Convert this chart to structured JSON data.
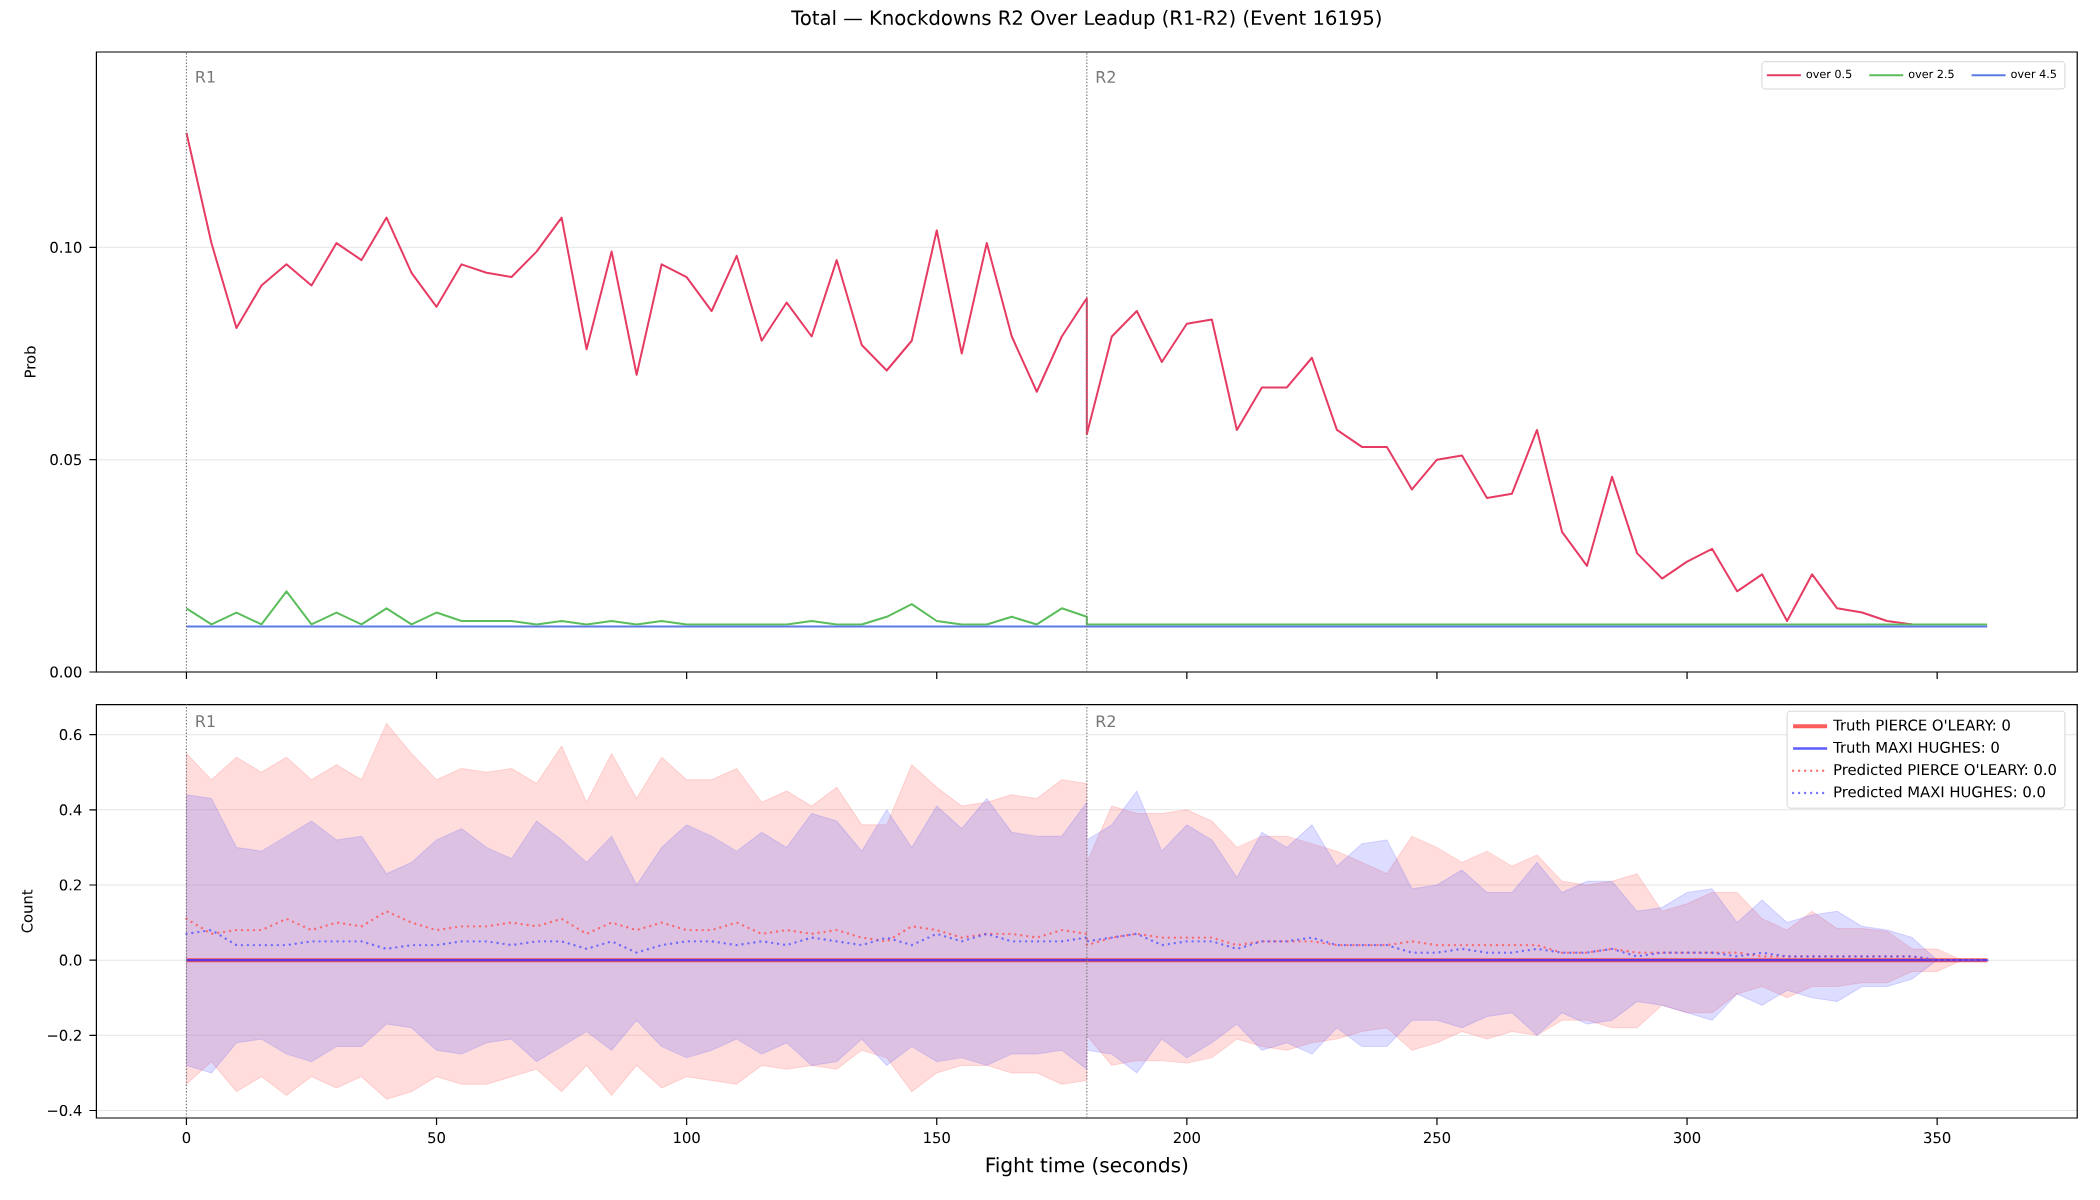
{
  "chart_data": [
    {
      "type": "line",
      "title": "Total — Knockdowns R2 Over Leadup (R1-R2) (Event 16195)",
      "ylabel": "Prob",
      "x": [
        0,
        5,
        10,
        15,
        20,
        25,
        30,
        35,
        40,
        45,
        50,
        55,
        60,
        65,
        70,
        75,
        80,
        85,
        90,
        95,
        100,
        105,
        110,
        115,
        120,
        125,
        130,
        135,
        140,
        145,
        150,
        155,
        160,
        165,
        170,
        175,
        180,
        180,
        185,
        190,
        195,
        200,
        205,
        210,
        215,
        220,
        225,
        230,
        235,
        240,
        245,
        250,
        255,
        260,
        265,
        270,
        275,
        280,
        285,
        290,
        295,
        300,
        305,
        310,
        315,
        320,
        325,
        330,
        335,
        340,
        345,
        350,
        355,
        360
      ],
      "series": [
        {
          "name": "over 0.5",
          "color": "#e63c64",
          "values": [
            0.127,
            0.101,
            0.081,
            0.091,
            0.096,
            0.091,
            0.101,
            0.097,
            0.107,
            0.094,
            0.086,
            0.096,
            0.094,
            0.093,
            0.099,
            0.107,
            0.076,
            0.099,
            0.07,
            0.096,
            0.093,
            0.085,
            0.098,
            0.078,
            0.087,
            0.079,
            0.097,
            0.077,
            0.071,
            0.078,
            0.104,
            0.075,
            0.101,
            0.079,
            0.066,
            0.079,
            0.088,
            0.056,
            0.079,
            0.085,
            0.073,
            0.082,
            0.083,
            0.057,
            0.067,
            0.067,
            0.074,
            0.057,
            0.053,
            0.053,
            0.043,
            0.05,
            0.051,
            0.041,
            0.042,
            0.057,
            0.033,
            0.025,
            0.046,
            0.028,
            0.022,
            0.026,
            0.029,
            0.019,
            0.023,
            0.012,
            0.023,
            0.015,
            0.014,
            0.012,
            0.0112,
            null,
            null,
            null
          ]
        },
        {
          "name": "over 2.5",
          "color": "#5cbd5c",
          "values": [
            0.015,
            0.0112,
            0.014,
            0.0112,
            0.019,
            0.0112,
            0.014,
            0.0112,
            0.015,
            0.0112,
            0.014,
            0.012,
            0.012,
            0.012,
            0.0112,
            0.012,
            0.0112,
            0.012,
            0.0112,
            0.012,
            0.0112,
            0.0112,
            0.0112,
            0.0112,
            0.0112,
            0.012,
            0.0112,
            0.0112,
            0.013,
            0.016,
            0.012,
            0.0112,
            0.0112,
            0.013,
            0.0112,
            0.015,
            0.013,
            0.0112,
            0.0112,
            0.0112,
            0.0112,
            0.0112,
            0.0112,
            0.0112,
            0.0112,
            0.0112,
            0.0112,
            0.0112,
            0.0112,
            0.0112,
            0.0112,
            0.0112,
            0.0112,
            0.0112,
            0.0112,
            0.0112,
            0.0112,
            0.0112,
            0.0112,
            0.0112,
            0.0112,
            0.0112,
            0.0112,
            0.0112,
            0.0112,
            0.0112,
            0.0112,
            0.0112,
            0.0112,
            0.0112,
            0.0112,
            0.0112,
            0.0112,
            0.0112
          ]
        },
        {
          "name": "over 4.5",
          "color": "#5b7be3",
          "values": [
            0.0107,
            0.0107,
            0.0107,
            0.0107,
            0.0107,
            0.0107,
            0.0107,
            0.0107,
            0.0107,
            0.0107,
            0.0107,
            0.0107,
            0.0107,
            0.0107,
            0.0107,
            0.0107,
            0.0107,
            0.0107,
            0.0107,
            0.0107,
            0.0107,
            0.0107,
            0.0107,
            0.0107,
            0.0107,
            0.0107,
            0.0107,
            0.0107,
            0.0107,
            0.0107,
            0.0107,
            0.0107,
            0.0107,
            0.0107,
            0.0107,
            0.0107,
            0.0107,
            0.0107,
            0.0107,
            0.0107,
            0.0107,
            0.0107,
            0.0107,
            0.0107,
            0.0107,
            0.0107,
            0.0107,
            0.0107,
            0.0107,
            0.0107,
            0.0107,
            0.0107,
            0.0107,
            0.0107,
            0.0107,
            0.0107,
            0.0107,
            0.0107,
            0.0107,
            0.0107,
            0.0107,
            0.0107,
            0.0107,
            0.0107,
            0.0107,
            0.0107,
            0.0107,
            0.0107,
            0.0107,
            0.0107,
            0.0107,
            0.0107,
            0.0107,
            0.0107
          ]
        }
      ],
      "xlim": [
        -18,
        378
      ],
      "ylim": [
        0,
        0.146
      ],
      "xticks": [
        0,
        50,
        100,
        150,
        200,
        250,
        300,
        350
      ],
      "yticks": [
        {
          "value": 0,
          "label": "0.00"
        },
        {
          "value": 0.05,
          "label": "0.05"
        },
        {
          "value": 0.1,
          "label": "0.10"
        }
      ],
      "tick_labels": "y",
      "grid": "y",
      "legend": "top right",
      "ref_lines": [
        {
          "axis": "x",
          "value": 0,
          "label": "R1",
          "color": "#777777",
          "line_style": "dotted"
        },
        {
          "axis": "x",
          "value": 180,
          "label": "R2",
          "color": "#777777",
          "line_style": "dotted"
        }
      ]
    },
    {
      "type": "line",
      "xlabel": "Fight time (seconds)",
      "ylabel": "Count",
      "x": [
        0,
        5,
        10,
        15,
        20,
        25,
        30,
        35,
        40,
        45,
        50,
        55,
        60,
        65,
        70,
        75,
        80,
        85,
        90,
        95,
        100,
        105,
        110,
        115,
        120,
        125,
        130,
        135,
        140,
        145,
        150,
        155,
        160,
        165,
        170,
        175,
        180,
        180,
        185,
        190,
        195,
        200,
        205,
        210,
        215,
        220,
        225,
        230,
        235,
        240,
        245,
        250,
        255,
        260,
        265,
        270,
        275,
        280,
        285,
        290,
        295,
        300,
        305,
        310,
        315,
        320,
        325,
        330,
        335,
        340,
        345,
        350,
        355,
        360
      ],
      "series": [
        {
          "name": "Truth PIERCE O'LEARY: 0",
          "color": "#ff3333",
          "values": [
            0,
            0,
            0,
            0,
            0,
            0,
            0,
            0,
            0,
            0,
            0,
            0,
            0,
            0,
            0,
            0,
            0,
            0,
            0,
            0,
            0,
            0,
            0,
            0,
            0,
            0,
            0,
            0,
            0,
            0,
            0,
            0,
            0,
            0,
            0,
            0,
            0,
            0,
            0,
            0,
            0,
            0,
            0,
            0,
            0,
            0,
            0,
            0,
            0,
            0,
            0,
            0,
            0,
            0,
            0,
            0,
            0,
            0,
            0,
            0,
            0,
            0,
            0,
            0,
            0,
            0,
            0,
            0,
            0,
            0,
            0,
            0,
            0,
            0
          ]
        },
        {
          "name": "Truth MAXI HUGHES: 0",
          "color": "#3333ff",
          "values": [
            0,
            0,
            0,
            0,
            0,
            0,
            0,
            0,
            0,
            0,
            0,
            0,
            0,
            0,
            0,
            0,
            0,
            0,
            0,
            0,
            0,
            0,
            0,
            0,
            0,
            0,
            0,
            0,
            0,
            0,
            0,
            0,
            0,
            0,
            0,
            0,
            0,
            0,
            0,
            0,
            0,
            0,
            0,
            0,
            0,
            0,
            0,
            0,
            0,
            0,
            0,
            0,
            0,
            0,
            0,
            0,
            0,
            0,
            0,
            0,
            0,
            0,
            0,
            0,
            0,
            0,
            0,
            0,
            0,
            0,
            0,
            0,
            0,
            0
          ]
        },
        {
          "name": "Predicted PIERCE O'LEARY: 0.0",
          "color": "#ff5555",
          "line_style": "dotted",
          "values": [
            0.11,
            0.07,
            0.08,
            0.08,
            0.11,
            0.08,
            0.1,
            0.09,
            0.13,
            0.1,
            0.08,
            0.09,
            0.09,
            0.1,
            0.09,
            0.11,
            0.07,
            0.1,
            0.08,
            0.1,
            0.08,
            0.08,
            0.1,
            0.07,
            0.08,
            0.07,
            0.08,
            0.06,
            0.05,
            0.09,
            0.08,
            0.06,
            0.07,
            0.07,
            0.06,
            0.08,
            0.07,
            0.04,
            0.06,
            0.07,
            0.06,
            0.06,
            0.06,
            0.04,
            0.05,
            0.05,
            0.05,
            0.04,
            0.04,
            0.04,
            0.05,
            0.04,
            0.04,
            0.04,
            0.04,
            0.04,
            0.02,
            0.02,
            0.03,
            0.02,
            0.02,
            0.02,
            0.02,
            0.02,
            0.01,
            0.01,
            0.01,
            0.01,
            0.01,
            0.01,
            0.01,
            0.0,
            0.0,
            0.0
          ],
          "upper": [
            0.55,
            0.48,
            0.54,
            0.5,
            0.54,
            0.48,
            0.52,
            0.48,
            0.63,
            0.55,
            0.48,
            0.51,
            0.5,
            0.51,
            0.47,
            0.57,
            0.42,
            0.55,
            0.43,
            0.54,
            0.48,
            0.48,
            0.51,
            0.42,
            0.45,
            0.41,
            0.46,
            0.36,
            0.36,
            0.52,
            0.46,
            0.41,
            0.42,
            0.44,
            0.43,
            0.48,
            0.47,
            0.26,
            0.41,
            0.39,
            0.39,
            0.4,
            0.37,
            0.3,
            0.33,
            0.33,
            0.31,
            0.29,
            0.26,
            0.23,
            0.33,
            0.3,
            0.26,
            0.29,
            0.25,
            0.28,
            0.21,
            0.2,
            0.21,
            0.23,
            0.13,
            0.15,
            0.18,
            0.18,
            0.11,
            0.08,
            0.13,
            0.084,
            0.084,
            0.077,
            0.03,
            0.03,
            0.0,
            0.0
          ],
          "lower": [
            -0.33,
            -0.27,
            -0.35,
            -0.31,
            -0.36,
            -0.31,
            -0.34,
            -0.31,
            -0.37,
            -0.35,
            -0.31,
            -0.33,
            -0.33,
            -0.31,
            -0.29,
            -0.35,
            -0.28,
            -0.36,
            -0.28,
            -0.34,
            -0.31,
            -0.32,
            -0.33,
            -0.28,
            -0.29,
            -0.28,
            -0.29,
            -0.24,
            -0.26,
            -0.35,
            -0.3,
            -0.28,
            -0.28,
            -0.3,
            -0.3,
            -0.33,
            -0.32,
            -0.2,
            -0.28,
            -0.267,
            -0.268,
            -0.274,
            -0.26,
            -0.21,
            -0.23,
            -0.24,
            -0.22,
            -0.21,
            -0.19,
            -0.18,
            -0.24,
            -0.22,
            -0.19,
            -0.21,
            -0.19,
            -0.2,
            -0.16,
            -0.16,
            -0.18,
            -0.18,
            -0.12,
            -0.14,
            -0.14,
            -0.09,
            -0.07,
            -0.1,
            -0.07,
            -0.07,
            -0.06,
            -0.06,
            -0.03,
            -0.03,
            0.0,
            0.0
          ]
        },
        {
          "name": "Predicted MAXI HUGHES: 0.0",
          "color": "#5555ff",
          "line_style": "dotted",
          "values": [
            0.07,
            0.08,
            0.04,
            0.04,
            0.04,
            0.05,
            0.05,
            0.05,
            0.03,
            0.04,
            0.04,
            0.05,
            0.05,
            0.04,
            0.05,
            0.05,
            0.03,
            0.05,
            0.02,
            0.04,
            0.05,
            0.05,
            0.04,
            0.05,
            0.04,
            0.06,
            0.05,
            0.04,
            0.06,
            0.04,
            0.07,
            0.05,
            0.07,
            0.05,
            0.05,
            0.05,
            0.06,
            0.05,
            0.06,
            0.07,
            0.04,
            0.05,
            0.05,
            0.03,
            0.05,
            0.05,
            0.06,
            0.04,
            0.04,
            0.04,
            0.02,
            0.02,
            0.03,
            0.02,
            0.02,
            0.03,
            0.02,
            0.02,
            0.03,
            0.01,
            0.02,
            0.02,
            0.02,
            0.01,
            0.02,
            0.01,
            0.01,
            0.01,
            0.01,
            0.01,
            0.01,
            0.0,
            0.0,
            0.0
          ],
          "upper": [
            0.44,
            0.43,
            0.3,
            0.29,
            0.33,
            0.37,
            0.32,
            0.33,
            0.23,
            0.26,
            0.32,
            0.35,
            0.3,
            0.27,
            0.37,
            0.32,
            0.26,
            0.33,
            0.2,
            0.3,
            0.36,
            0.33,
            0.29,
            0.34,
            0.3,
            0.39,
            0.37,
            0.29,
            0.4,
            0.3,
            0.41,
            0.35,
            0.43,
            0.34,
            0.33,
            0.33,
            0.42,
            0.32,
            0.36,
            0.45,
            0.29,
            0.36,
            0.32,
            0.22,
            0.34,
            0.3,
            0.36,
            0.25,
            0.31,
            0.32,
            0.19,
            0.2,
            0.24,
            0.18,
            0.18,
            0.26,
            0.18,
            0.21,
            0.21,
            0.13,
            0.14,
            0.18,
            0.19,
            0.1,
            0.16,
            0.1,
            0.12,
            0.13,
            0.09,
            0.08,
            0.06,
            0.0,
            0.0,
            0.0
          ],
          "lower": [
            -0.28,
            -0.3,
            -0.22,
            -0.21,
            -0.25,
            -0.27,
            -0.23,
            -0.23,
            -0.17,
            -0.18,
            -0.24,
            -0.25,
            -0.22,
            -0.21,
            -0.27,
            -0.23,
            -0.19,
            -0.24,
            -0.16,
            -0.23,
            -0.26,
            -0.24,
            -0.21,
            -0.25,
            -0.22,
            -0.28,
            -0.27,
            -0.21,
            -0.28,
            -0.23,
            -0.27,
            -0.26,
            -0.28,
            -0.25,
            -0.25,
            -0.24,
            -0.29,
            -0.24,
            -0.25,
            -0.3,
            -0.21,
            -0.26,
            -0.22,
            -0.17,
            -0.24,
            -0.22,
            -0.25,
            -0.18,
            -0.23,
            -0.23,
            -0.16,
            -0.16,
            -0.18,
            -0.15,
            -0.14,
            -0.2,
            -0.14,
            -0.17,
            -0.16,
            -0.11,
            -0.12,
            -0.14,
            -0.16,
            -0.09,
            -0.12,
            -0.08,
            -0.1,
            -0.11,
            -0.07,
            -0.07,
            -0.05,
            0.0,
            0.0,
            0.0
          ]
        }
      ],
      "xlim": [
        -18,
        378
      ],
      "ylim": [
        -0.42,
        0.68
      ],
      "xticks": [
        0,
        50,
        100,
        150,
        200,
        250,
        300,
        350
      ],
      "yticks": [
        {
          "value": -0.4,
          "label": "−0.4"
        },
        {
          "value": -0.2,
          "label": "−0.2"
        },
        {
          "value": 0,
          "label": "0.0"
        },
        {
          "value": 0.2,
          "label": "0.2"
        },
        {
          "value": 0.4,
          "label": "0.4"
        },
        {
          "value": 0.6,
          "label": "0.6"
        }
      ],
      "grid": "y",
      "legend": "top right",
      "ref_lines": [
        {
          "axis": "x",
          "value": 0,
          "label": "R1",
          "color": "#777777",
          "line_style": "dotted"
        },
        {
          "axis": "x",
          "value": 180,
          "label": "R2",
          "color": "#777777",
          "line_style": "dotted"
        }
      ]
    }
  ]
}
